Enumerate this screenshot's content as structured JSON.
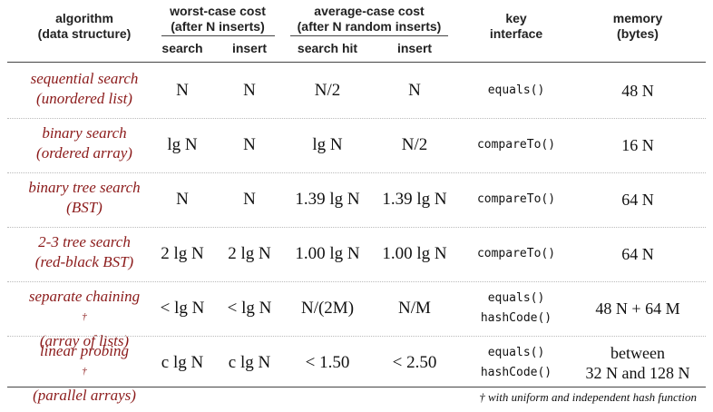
{
  "headers": {
    "algorithm": [
      "algorithm",
      "(data structure)"
    ],
    "worst_case": [
      "worst-case cost",
      "(after N inserts)"
    ],
    "average_case": [
      "average-case cost",
      "(after N random inserts)"
    ],
    "worst_search": "search",
    "worst_insert": "insert",
    "avg_search_hit": "search hit",
    "avg_insert": "insert",
    "key_interface": [
      "key",
      "interface"
    ],
    "memory": [
      "memory",
      "(bytes)"
    ]
  },
  "rows": [
    {
      "algo": [
        "sequential search",
        "(unordered list)"
      ],
      "dagger": "",
      "ws": "N",
      "wi": "N",
      "as": "N/2",
      "ai": "N",
      "key": [
        "equals()"
      ],
      "mem": [
        "48 N"
      ]
    },
    {
      "algo": [
        "binary search",
        "(ordered array)"
      ],
      "dagger": "",
      "ws": "lg N",
      "wi": "N",
      "as": "lg N",
      "ai": "N/2",
      "key": [
        "compareTo()"
      ],
      "mem": [
        "16 N"
      ]
    },
    {
      "algo": [
        "binary tree search",
        "(BST)"
      ],
      "dagger": "",
      "ws": "N",
      "wi": "N",
      "as": "1.39 lg N",
      "ai": "1.39 lg N",
      "key": [
        "compareTo()"
      ],
      "mem": [
        "64 N"
      ]
    },
    {
      "algo": [
        "2-3 tree search",
        "(red-black BST)"
      ],
      "dagger": "",
      "ws": "2 lg N",
      "wi": "2 lg N",
      "as": "1.00 lg N",
      "ai": "1.00 lg N",
      "key": [
        "compareTo()"
      ],
      "mem": [
        "64 N"
      ]
    },
    {
      "algo": [
        "separate chaining",
        "(array of lists)"
      ],
      "dagger": "†",
      "ws": "< lg N",
      "wi": "< lg N",
      "as": "N/(2M)",
      "ai": "N/M",
      "key": [
        "equals()",
        "hashCode()"
      ],
      "mem": [
        "48 N + 64 M"
      ]
    },
    {
      "algo": [
        "linear probing",
        "(parallel arrays)"
      ],
      "dagger": "†",
      "ws": "c lg N",
      "wi": "c lg N",
      "as": "< 1.50",
      "ai": "< 2.50",
      "key": [
        "equals()",
        "hashCode()"
      ],
      "mem": [
        "between",
        "32 N and 128 N"
      ]
    }
  ],
  "footnote": "† with uniform and independent hash function"
}
